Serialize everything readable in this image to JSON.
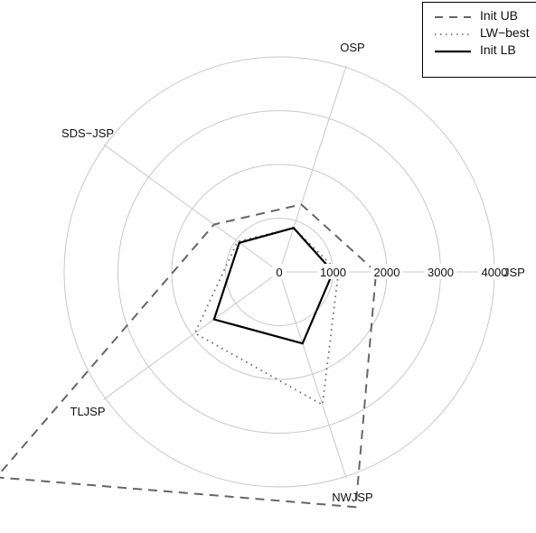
{
  "chart_data": {
    "type": "radar",
    "axes": [
      "JSP",
      "OSP",
      "SDS−JSP",
      "TLJSP",
      "NWJSP"
    ],
    "radial_ticks": [
      "0",
      "1000",
      "2000",
      "3000",
      "4000"
    ],
    "rmax": 4000,
    "grid": true,
    "legend_position": "top-right",
    "series": [
      {
        "name": "Init UB",
        "style": "dashed",
        "color": "#666666",
        "values": [
          1800,
          1320,
          1500,
          6500,
          4600
        ]
      },
      {
        "name": "LW−best",
        "style": "dotted",
        "color": "#666666",
        "values": [
          1100,
          860,
          960,
          1940,
          2600
        ]
      },
      {
        "name": "Init LB",
        "style": "solid",
        "color": "#000000",
        "values": [
          1000,
          860,
          920,
          1500,
          1400
        ]
      }
    ]
  }
}
